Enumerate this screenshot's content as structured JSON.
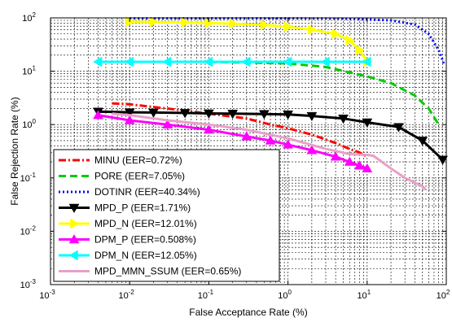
{
  "chart_data": {
    "type": "line",
    "title": "",
    "xlabel": "False Acceptance Rate (%)",
    "ylabel": "False Rejection Rate (%)",
    "xscale": "log",
    "yscale": "log",
    "xlim": [
      0.001,
      100
    ],
    "ylim": [
      0.001,
      100
    ],
    "grid": true,
    "legend_position": "lower-left",
    "x_ticks": [
      {
        "value": 0.001,
        "base": "10",
        "exp": "-3"
      },
      {
        "value": 0.01,
        "base": "10",
        "exp": "-2"
      },
      {
        "value": 0.1,
        "base": "10",
        "exp": "-1"
      },
      {
        "value": 1,
        "base": "10",
        "exp": "0"
      },
      {
        "value": 10,
        "base": "10",
        "exp": "1"
      },
      {
        "value": 100,
        "base": "10",
        "exp": "2"
      }
    ],
    "y_ticks": [
      {
        "value": 0.001,
        "base": "10",
        "exp": "-3"
      },
      {
        "value": 0.01,
        "base": "10",
        "exp": "-2"
      },
      {
        "value": 0.1,
        "base": "10",
        "exp": "-1"
      },
      {
        "value": 1,
        "base": "10",
        "exp": "0"
      },
      {
        "value": 10,
        "base": "10",
        "exp": "1"
      },
      {
        "value": 100,
        "base": "10",
        "exp": "2"
      }
    ],
    "series": [
      {
        "name": "MINU (EER=0.72%)",
        "color": "#ff0000",
        "dash": "dashdot",
        "marker": "none",
        "x": [
          0.006,
          0.01,
          0.03,
          0.1,
          0.3,
          0.6,
          1,
          2,
          4,
          6,
          8,
          10
        ],
        "y": [
          2.5,
          2.4,
          2.0,
          1.6,
          1.3,
          1.0,
          0.85,
          0.65,
          0.45,
          0.35,
          0.3,
          0.25
        ]
      },
      {
        "name": "PORE (EER=7.05%)",
        "color": "#00cc00",
        "dash": "dashed",
        "marker": "none",
        "x": [
          0.01,
          0.1,
          1,
          3,
          10,
          20,
          40,
          60,
          80
        ],
        "y": [
          15,
          15,
          14,
          12,
          8,
          6,
          3.5,
          2,
          1
        ]
      },
      {
        "name": "DOTINR (EER=40.34%)",
        "color": "#0000ff",
        "dash": "dotted",
        "marker": "none",
        "x": [
          0.01,
          0.1,
          1,
          5,
          20,
          40,
          60,
          80,
          95
        ],
        "y": [
          98,
          98,
          98,
          97,
          90,
          75,
          50,
          25,
          13
        ]
      },
      {
        "name": "MPD_P (EER=1.71%)",
        "color": "#000000",
        "dash": "solid",
        "marker": "triangle-down",
        "x": [
          0.004,
          0.01,
          0.02,
          0.05,
          0.1,
          0.2,
          0.5,
          1,
          2,
          5,
          10,
          25,
          50,
          90
        ],
        "y": [
          1.75,
          1.7,
          1.68,
          1.65,
          1.62,
          1.6,
          1.58,
          1.55,
          1.45,
          1.3,
          1.1,
          0.9,
          0.5,
          0.22
        ]
      },
      {
        "name": "MPD_N (EER=12.01%)",
        "color": "#ffff00",
        "dash": "solid",
        "marker": "triangle-right",
        "x": [
          0.01,
          0.02,
          0.05,
          0.1,
          0.2,
          0.5,
          1,
          2,
          4,
          6,
          8,
          10
        ],
        "y": [
          85,
          84,
          82,
          80,
          78,
          74,
          68,
          60,
          50,
          38,
          25,
          15
        ]
      },
      {
        "name": "DPM_P (EER=0.508%)",
        "color": "#ff00ff",
        "dash": "solid",
        "marker": "triangle-up",
        "x": [
          0.004,
          0.01,
          0.03,
          0.1,
          0.3,
          0.6,
          1,
          2,
          4,
          6,
          8,
          10
        ],
        "y": [
          1.5,
          1.2,
          1.0,
          0.8,
          0.6,
          0.5,
          0.42,
          0.33,
          0.25,
          0.2,
          0.17,
          0.15
        ]
      },
      {
        "name": "DPM_N (EER=12.05%)",
        "color": "#00ffff",
        "dash": "solid",
        "marker": "triangle-left",
        "x": [
          0.004,
          0.01,
          0.03,
          0.1,
          0.3,
          1,
          3,
          10
        ],
        "y": [
          15,
          15,
          15,
          15,
          15,
          15,
          15,
          15
        ]
      },
      {
        "name": "MPD_MMN_SSUM (EER=0.65%)",
        "color": "#e8a0c8",
        "dash": "solid",
        "marker": "none",
        "x": [
          0.006,
          0.01,
          0.03,
          0.1,
          0.3,
          1,
          3,
          6,
          10,
          12,
          20,
          30,
          50,
          55
        ],
        "y": [
          1.6,
          1.5,
          1.2,
          1.0,
          0.8,
          0.55,
          0.35,
          0.28,
          0.27,
          0.26,
          0.15,
          0.1,
          0.07,
          0.06
        ]
      }
    ]
  }
}
